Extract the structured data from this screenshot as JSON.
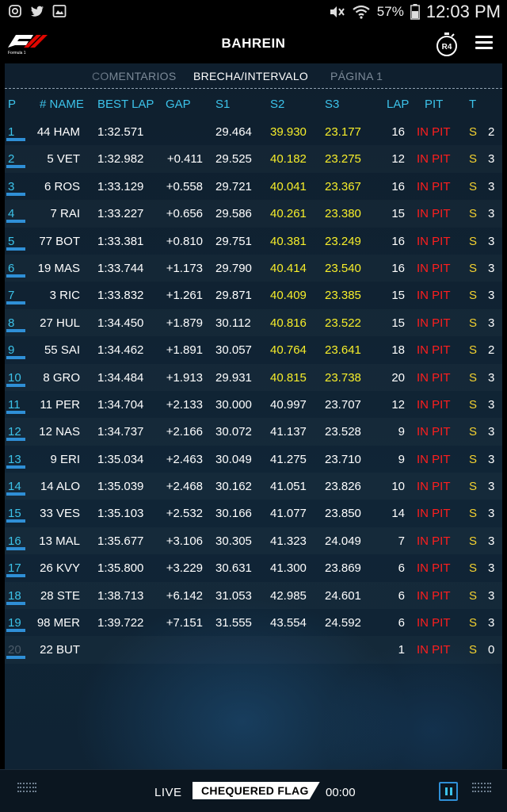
{
  "status_bar": {
    "left_icons": [
      "instagram-icon",
      "twitter-icon",
      "gallery-icon"
    ],
    "battery_pct": "57%",
    "time": "12:03 PM"
  },
  "header": {
    "logo": "f1-logo",
    "title": "BAHREIN",
    "round_badge": "R4"
  },
  "tabs": [
    {
      "label": "COMENTARIOS",
      "state": "dim"
    },
    {
      "label": "BRECHA/INTERVALO",
      "state": "active"
    },
    {
      "label": "PÁGINA 1",
      "state": "dim"
    }
  ],
  "columns": [
    "P",
    "# NAME",
    "BEST LAP",
    "GAP",
    "S1",
    "S2",
    "S3",
    "LAP",
    "PIT",
    "T"
  ],
  "rows": [
    {
      "p": "1",
      "name": "44 HAM",
      "best": "1:32.571",
      "gap": "",
      "s1": "29.464",
      "s2": "39.930",
      "s3": "23.177",
      "lap": "16",
      "pit": "IN PIT",
      "tyre": "S",
      "stops": "2",
      "s2_hl": true,
      "s3_hl": true
    },
    {
      "p": "2",
      "name": "5 VET",
      "best": "1:32.982",
      "gap": "+0.411",
      "s1": "29.525",
      "s2": "40.182",
      "s3": "23.275",
      "lap": "12",
      "pit": "IN PIT",
      "tyre": "S",
      "stops": "3",
      "s2_hl": true,
      "s3_hl": true
    },
    {
      "p": "3",
      "name": "6 ROS",
      "best": "1:33.129",
      "gap": "+0.558",
      "s1": "29.721",
      "s2": "40.041",
      "s3": "23.367",
      "lap": "16",
      "pit": "IN PIT",
      "tyre": "S",
      "stops": "3",
      "s2_hl": true,
      "s3_hl": true
    },
    {
      "p": "4",
      "name": "7 RAI",
      "best": "1:33.227",
      "gap": "+0.656",
      "s1": "29.586",
      "s2": "40.261",
      "s3": "23.380",
      "lap": "15",
      "pit": "IN PIT",
      "tyre": "S",
      "stops": "3",
      "s2_hl": true,
      "s3_hl": true
    },
    {
      "p": "5",
      "name": "77 BOT",
      "best": "1:33.381",
      "gap": "+0.810",
      "s1": "29.751",
      "s2": "40.381",
      "s3": "23.249",
      "lap": "16",
      "pit": "IN PIT",
      "tyre": "S",
      "stops": "3",
      "s2_hl": true,
      "s3_hl": true
    },
    {
      "p": "6",
      "name": "19 MAS",
      "best": "1:33.744",
      "gap": "+1.173",
      "s1": "29.790",
      "s2": "40.414",
      "s3": "23.540",
      "lap": "16",
      "pit": "IN PIT",
      "tyre": "S",
      "stops": "3",
      "s2_hl": true,
      "s3_hl": true
    },
    {
      "p": "7",
      "name": "3 RIC",
      "best": "1:33.832",
      "gap": "+1.261",
      "s1": "29.871",
      "s2": "40.409",
      "s3": "23.385",
      "lap": "15",
      "pit": "IN PIT",
      "tyre": "S",
      "stops": "3",
      "s2_hl": true,
      "s3_hl": true
    },
    {
      "p": "8",
      "name": "27 HUL",
      "best": "1:34.450",
      "gap": "+1.879",
      "s1": "30.112",
      "s2": "40.816",
      "s3": "23.522",
      "lap": "15",
      "pit": "IN PIT",
      "tyre": "S",
      "stops": "3",
      "s2_hl": true,
      "s3_hl": true
    },
    {
      "p": "9",
      "name": "55 SAI",
      "best": "1:34.462",
      "gap": "+1.891",
      "s1": "30.057",
      "s2": "40.764",
      "s3": "23.641",
      "lap": "18",
      "pit": "IN PIT",
      "tyre": "S",
      "stops": "2",
      "s2_hl": true,
      "s3_hl": true
    },
    {
      "p": "10",
      "name": "8 GRO",
      "best": "1:34.484",
      "gap": "+1.913",
      "s1": "29.931",
      "s2": "40.815",
      "s3": "23.738",
      "lap": "20",
      "pit": "IN PIT",
      "tyre": "S",
      "stops": "3",
      "s2_hl": true,
      "s3_hl": true
    },
    {
      "p": "11",
      "name": "11 PER",
      "best": "1:34.704",
      "gap": "+2.133",
      "s1": "30.000",
      "s2": "40.997",
      "s3": "23.707",
      "lap": "12",
      "pit": "IN PIT",
      "tyre": "S",
      "stops": "3",
      "s2_hl": false,
      "s3_hl": false
    },
    {
      "p": "12",
      "name": "12 NAS",
      "best": "1:34.737",
      "gap": "+2.166",
      "s1": "30.072",
      "s2": "41.137",
      "s3": "23.528",
      "lap": "9",
      "pit": "IN PIT",
      "tyre": "S",
      "stops": "3",
      "s2_hl": false,
      "s3_hl": false
    },
    {
      "p": "13",
      "name": "9 ERI",
      "best": "1:35.034",
      "gap": "+2.463",
      "s1": "30.049",
      "s2": "41.275",
      "s3": "23.710",
      "lap": "9",
      "pit": "IN PIT",
      "tyre": "S",
      "stops": "3",
      "s2_hl": false,
      "s3_hl": false
    },
    {
      "p": "14",
      "name": "14 ALO",
      "best": "1:35.039",
      "gap": "+2.468",
      "s1": "30.162",
      "s2": "41.051",
      "s3": "23.826",
      "lap": "10",
      "pit": "IN PIT",
      "tyre": "S",
      "stops": "3",
      "s2_hl": false,
      "s3_hl": false
    },
    {
      "p": "15",
      "name": "33 VES",
      "best": "1:35.103",
      "gap": "+2.532",
      "s1": "30.166",
      "s2": "41.077",
      "s3": "23.850",
      "lap": "14",
      "pit": "IN PIT",
      "tyre": "S",
      "stops": "3",
      "s2_hl": false,
      "s3_hl": false
    },
    {
      "p": "16",
      "name": "13 MAL",
      "best": "1:35.677",
      "gap": "+3.106",
      "s1": "30.305",
      "s2": "41.323",
      "s3": "24.049",
      "lap": "7",
      "pit": "IN PIT",
      "tyre": "S",
      "stops": "3",
      "s2_hl": false,
      "s3_hl": false
    },
    {
      "p": "17",
      "name": "26 KVY",
      "best": "1:35.800",
      "gap": "+3.229",
      "s1": "30.631",
      "s2": "41.300",
      "s3": "23.869",
      "lap": "6",
      "pit": "IN PIT",
      "tyre": "S",
      "stops": "3",
      "s2_hl": false,
      "s3_hl": false
    },
    {
      "p": "18",
      "name": "28 STE",
      "best": "1:38.713",
      "gap": "+6.142",
      "s1": "31.053",
      "s2": "42.985",
      "s3": "24.601",
      "lap": "6",
      "pit": "IN PIT",
      "tyre": "S",
      "stops": "3",
      "s2_hl": false,
      "s3_hl": false
    },
    {
      "p": "19",
      "name": "98 MER",
      "best": "1:39.722",
      "gap": "+7.151",
      "s1": "31.555",
      "s2": "43.554",
      "s3": "24.592",
      "lap": "6",
      "pit": "IN PIT",
      "tyre": "S",
      "stops": "3",
      "s2_hl": false,
      "s3_hl": false
    },
    {
      "p": "20",
      "name": "22 BUT",
      "best": "",
      "gap": "",
      "s1": "",
      "s2": "",
      "s3": "",
      "lap": "1",
      "pit": "IN PIT",
      "tyre": "S",
      "stops": "0",
      "s2_hl": false,
      "s3_hl": false,
      "dim": true
    }
  ],
  "bottom_bar": {
    "live": "LIVE",
    "flag": "CHEQUERED FLAG",
    "clock": "00:00"
  },
  "colors": {
    "accent_cyan": "#3cc3ea",
    "pit_red": "#ff1e1e",
    "sector_yellow": "#f7ee2a",
    "tyre_yellow": "#f4d230"
  }
}
